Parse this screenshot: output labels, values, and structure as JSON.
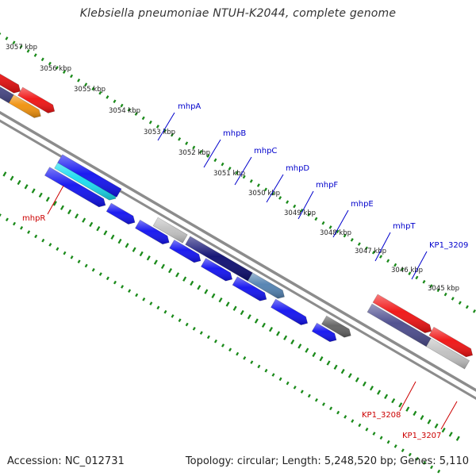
{
  "title": "Klebsiella pneumoniae NTUH-K2044, complete genome",
  "accession": "Accession: NC_012731",
  "summary": "Topology: circular; Length: 5,248,520 bp; Genes: 5,110",
  "colors": {
    "tick_green": "#1a8a1a",
    "backbone": "#8c8c8c",
    "forward_label": "#0000cc",
    "reverse_label": "#cc0000",
    "gene_blue": "#1010f0",
    "gene_red": "#f01010",
    "gene_slate": "#4a4a8c",
    "gene_orange": "#f0900a",
    "gene_cyan": "#18dcf0",
    "gene_navy": "#0c0c70",
    "gene_steel": "#5080b0",
    "gene_gray": "#c0c0c0",
    "gene_darkgray": "#606060"
  },
  "kbp_labels": [
    "3057 kbp",
    "3056 kbp",
    "3055 kbp",
    "3054 kbp",
    "3053 kbp",
    "3052 kbp",
    "3051 kbp",
    "3050 kbp",
    "3049 kbp",
    "3048 kbp",
    "3047 kbp",
    "3046 kbp",
    "3045 kbp"
  ],
  "gene_labels": {
    "forward": [
      "mhpA",
      "mhpB",
      "mhpC",
      "mhpD",
      "mhpF",
      "mhpE",
      "mhpT",
      "KP1_3209"
    ],
    "reverse": [
      "mhpR",
      "KP1_3208",
      "KP1_3207"
    ]
  }
}
